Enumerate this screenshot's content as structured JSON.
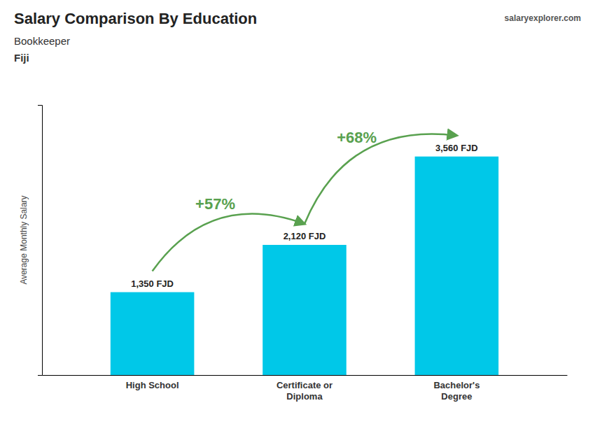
{
  "chart_data": {
    "type": "bar",
    "title": "Salary Comparison By Education",
    "subtitle": "Bookkeeper",
    "country": "Fiji",
    "source": "salaryexplorer.com",
    "ylabel": "Average Monthly Salary",
    "categories": [
      "High School",
      "Certificate or\nDiploma",
      "Bachelor's\nDegree"
    ],
    "values": [
      1350,
      2120,
      3560
    ],
    "value_labels": [
      "1,350 FJD",
      "2,120 FJD",
      "3,560 FJD"
    ],
    "data_labels": true,
    "annotations": [
      "+57%",
      "+68%"
    ],
    "color": "#00c8e8",
    "ylim": [
      0,
      4400
    ],
    "yticks": [],
    "tick_labels": "x",
    "grid": false
  }
}
